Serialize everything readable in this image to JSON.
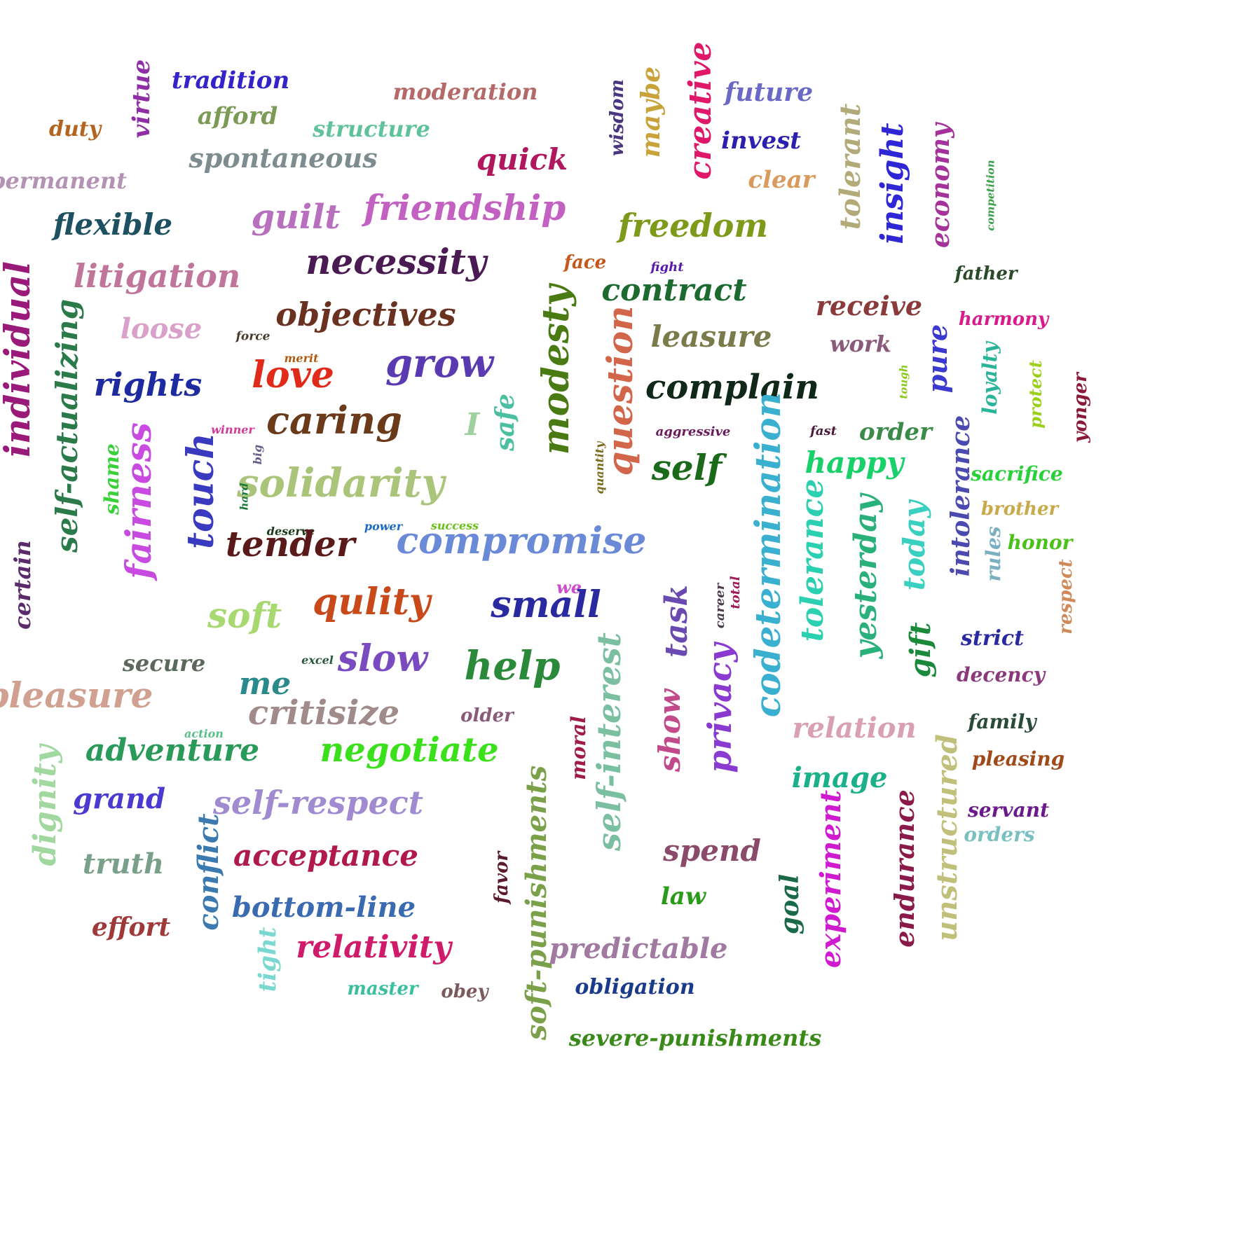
{
  "words": [
    {
      "text": "tradition",
      "color": "#3324c9"
    },
    {
      "text": "moderation",
      "color": "#b56a6a"
    },
    {
      "text": "virtue",
      "color": "#8f2fa6"
    },
    {
      "text": "afford",
      "color": "#7a9a55"
    },
    {
      "text": "structure",
      "color": "#5fc29a"
    },
    {
      "text": "duty",
      "color": "#b3641e"
    },
    {
      "text": "spontaneous",
      "color": "#7c8c8f"
    },
    {
      "text": "permanent",
      "color": "#b392b3"
    },
    {
      "text": "quick",
      "color": "#b0175e"
    },
    {
      "text": "friendship",
      "color": "#c261c2"
    },
    {
      "text": "flexible",
      "color": "#1d5060"
    },
    {
      "text": "guilt",
      "color": "#b86fbd"
    },
    {
      "text": "necessity",
      "color": "#4a1a52"
    },
    {
      "text": "litigation",
      "color": "#c0759a"
    },
    {
      "text": "wisdom",
      "color": "#4a3680"
    },
    {
      "text": "maybe",
      "color": "#c9a23a"
    },
    {
      "text": "creative",
      "color": "#e0186a"
    },
    {
      "text": "future",
      "color": "#6a6ac6"
    },
    {
      "text": "invest",
      "color": "#2b1fb0"
    },
    {
      "text": "clear",
      "color": "#d99a5e"
    },
    {
      "text": "freedom",
      "color": "#7e9a1a"
    },
    {
      "text": "tolerant",
      "color": "#b3aa7a"
    },
    {
      "text": "insight",
      "color": "#2f26d6"
    },
    {
      "text": "economy",
      "color": "#a5329a"
    },
    {
      "text": "competition",
      "color": "#3aa04a"
    },
    {
      "text": "face",
      "color": "#c7561a"
    },
    {
      "text": "fight",
      "color": "#5a1aa8"
    },
    {
      "text": "contract",
      "color": "#1d6a30"
    },
    {
      "text": "father",
      "color": "#2a4a2a"
    },
    {
      "text": "receive",
      "color": "#8a3a3a"
    },
    {
      "text": "harmony",
      "color": "#d81a8a"
    },
    {
      "text": "individual",
      "color": "#9a1a7a"
    },
    {
      "text": "self-actualizing",
      "color": "#2a7a4a"
    },
    {
      "text": "objectives",
      "color": "#6a3020"
    },
    {
      "text": "loose",
      "color": "#d9a0c9"
    },
    {
      "text": "force",
      "color": "#4a3a2a"
    },
    {
      "text": "merit",
      "color": "#b05a10"
    },
    {
      "text": "modesty",
      "color": "#4a7a12"
    },
    {
      "text": "question",
      "color": "#d2664a"
    },
    {
      "text": "leasure",
      "color": "#7a7a4a"
    },
    {
      "text": "work",
      "color": "#8a5a7a"
    },
    {
      "text": "pure",
      "color": "#3a3ad0"
    },
    {
      "text": "loyalty",
      "color": "#2ab49a"
    },
    {
      "text": "tough",
      "color": "#8ac81a"
    },
    {
      "text": "protect",
      "color": "#9ad01a"
    },
    {
      "text": "yonger",
      "color": "#8a1a3a"
    },
    {
      "text": "rights",
      "color": "#1e2aa0"
    },
    {
      "text": "love",
      "color": "#e02a1a"
    },
    {
      "text": "grow",
      "color": "#5a3ab0"
    },
    {
      "text": "complain",
      "color": "#10281a"
    },
    {
      "text": "caring",
      "color": "#6a3a1a"
    },
    {
      "text": "I",
      "color": "#a0d0a0"
    },
    {
      "text": "safe",
      "color": "#4ac0a0"
    },
    {
      "text": "winner",
      "color": "#d03a9a"
    },
    {
      "text": "aggressive",
      "color": "#6a1a5a"
    },
    {
      "text": "fast",
      "color": "#4a1a3a"
    },
    {
      "text": "order",
      "color": "#3a8a4a"
    },
    {
      "text": "shame",
      "color": "#3ad03a"
    },
    {
      "text": "fairness",
      "color": "#c84ae0"
    },
    {
      "text": "touch",
      "color": "#3a3ac0"
    },
    {
      "text": "big",
      "color": "#6a5a8a"
    },
    {
      "text": "solidarity",
      "color": "#aac47a"
    },
    {
      "text": "hard",
      "color": "#1a7a3a"
    },
    {
      "text": "quantity",
      "color": "#7a6a1a"
    },
    {
      "text": "self",
      "color": "#1a6a1a"
    },
    {
      "text": "happy",
      "color": "#1ad06a"
    },
    {
      "text": "sacrifice",
      "color": "#2ad03a"
    },
    {
      "text": "intolerance",
      "color": "#4a4ab0"
    },
    {
      "text": "codetermination",
      "color": "#3ab0d0"
    },
    {
      "text": "brother",
      "color": "#c9aa4a"
    },
    {
      "text": "honor",
      "color": "#4ac01a"
    },
    {
      "text": "deserve",
      "color": "#1a3a1a"
    },
    {
      "text": "power",
      "color": "#1a6ac0"
    },
    {
      "text": "success",
      "color": "#6ac01a"
    },
    {
      "text": "tender",
      "color": "#5a1a1a"
    },
    {
      "text": "compromise",
      "color": "#6a8ad8"
    },
    {
      "text": "tolerance",
      "color": "#2ad0b0"
    },
    {
      "text": "yesterday",
      "color": "#2ab07a"
    },
    {
      "text": "today",
      "color": "#3ad0c0"
    },
    {
      "text": "rules",
      "color": "#7ab0c0"
    },
    {
      "text": "certain",
      "color": "#5a2a6a"
    },
    {
      "text": "we",
      "color": "#d04ad0"
    },
    {
      "text": "respect",
      "color": "#d08a5a"
    },
    {
      "text": "soft",
      "color": "#a8d870"
    },
    {
      "text": "qulity",
      "color": "#c84a1a"
    },
    {
      "text": "small",
      "color": "#2a2aa0"
    },
    {
      "text": "task",
      "color": "#6a4ab0"
    },
    {
      "text": "career",
      "color": "#4a3a4a"
    },
    {
      "text": "total",
      "color": "#a01a5a"
    },
    {
      "text": "gift",
      "color": "#1a8a3a"
    },
    {
      "text": "strict",
      "color": "#2a2aa0"
    },
    {
      "text": "secure",
      "color": "#5a6a5a"
    },
    {
      "text": "excel",
      "color": "#2a5a3a"
    },
    {
      "text": "slow",
      "color": "#7a4ac0"
    },
    {
      "text": "help",
      "color": "#2a8a3a"
    },
    {
      "text": "me",
      "color": "#2a8a8a"
    },
    {
      "text": "pleasure",
      "color": "#d0a090"
    },
    {
      "text": "decency",
      "color": "#8a3a7a"
    },
    {
      "text": "self-interest",
      "color": "#7ac0a0"
    },
    {
      "text": "privacy",
      "color": "#8a3ad0"
    },
    {
      "text": "critisize",
      "color": "#a08a8a"
    },
    {
      "text": "older",
      "color": "#8a5a7a"
    },
    {
      "text": "relation",
      "color": "#d8a0b0"
    },
    {
      "text": "family",
      "color": "#2a4a3a"
    },
    {
      "text": "action",
      "color": "#5ac08a"
    },
    {
      "text": "adventure",
      "color": "#2a9a5a"
    },
    {
      "text": "negotiate",
      "color": "#3ae01a"
    },
    {
      "text": "show",
      "color": "#c04a8a"
    },
    {
      "text": "moral",
      "color": "#a01a4a"
    },
    {
      "text": "dignity",
      "color": "#a0d8a0"
    },
    {
      "text": "pleasing",
      "color": "#a04a1a"
    },
    {
      "text": "image",
      "color": "#1ab08a"
    },
    {
      "text": "grand",
      "color": "#4a3ad0"
    },
    {
      "text": "self-respect",
      "color": "#a08ad0"
    },
    {
      "text": "unstructured",
      "color": "#c0c07a"
    },
    {
      "text": "servant",
      "color": "#6a1a8a"
    },
    {
      "text": "orders",
      "color": "#7ac0c0"
    },
    {
      "text": "truth",
      "color": "#7aa08a"
    },
    {
      "text": "conflict",
      "color": "#3a7ab0"
    },
    {
      "text": "acceptance",
      "color": "#b01a4a"
    },
    {
      "text": "spend",
      "color": "#8a4a6a"
    },
    {
      "text": "experiment",
      "color": "#d01ad0"
    },
    {
      "text": "endurance",
      "color": "#8a1a4a"
    },
    {
      "text": "soft-punishments",
      "color": "#7aa04a"
    },
    {
      "text": "favor",
      "color": "#5a1a2a"
    },
    {
      "text": "law",
      "color": "#2a9a1a"
    },
    {
      "text": "goal",
      "color": "#1a6a4a"
    },
    {
      "text": "bottom-line",
      "color": "#3a6ab0"
    },
    {
      "text": "effort",
      "color": "#a03a3a"
    },
    {
      "text": "relativity",
      "color": "#d01a6a"
    },
    {
      "text": "predictable",
      "color": "#a07aa0"
    },
    {
      "text": "tight",
      "color": "#7ad8d0"
    },
    {
      "text": "master",
      "color": "#3ac0a0"
    },
    {
      "text": "obey",
      "color": "#7a5a5a"
    },
    {
      "text": "obligation",
      "color": "#1a3a8a"
    },
    {
      "text": "severe-punishments",
      "color": "#3a8a1a"
    }
  ]
}
